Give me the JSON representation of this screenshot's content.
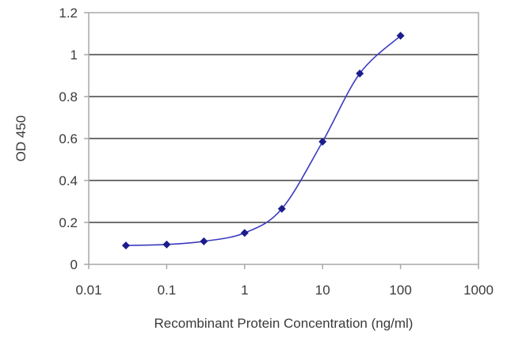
{
  "chart_data": {
    "type": "scatter",
    "xlabel": "Recombinant Protein Concentration (ng/ml)",
    "ylabel": "OD 450",
    "x_scale": "log",
    "xlim": [
      0.01,
      1000
    ],
    "ylim": [
      0,
      1.2
    ],
    "grid": "horizontal",
    "x_ticks": [
      "0.01",
      "0.1",
      "1",
      "10",
      "100",
      "1000"
    ],
    "y_ticks": [
      "0",
      "0.2",
      "0.4",
      "0.6",
      "0.8",
      "1",
      "1.2"
    ],
    "series": [
      {
        "x": [
          0.03,
          0.1,
          0.3,
          1,
          3,
          10,
          30,
          100
        ],
        "y": [
          0.09,
          0.095,
          0.11,
          0.15,
          0.265,
          0.585,
          0.91,
          1.09
        ]
      }
    ],
    "colors": {
      "line": "#3b3bbf",
      "marker": "#1c1c8c",
      "grid": "#1a1a1a",
      "frame": "#a8a8a8"
    }
  }
}
